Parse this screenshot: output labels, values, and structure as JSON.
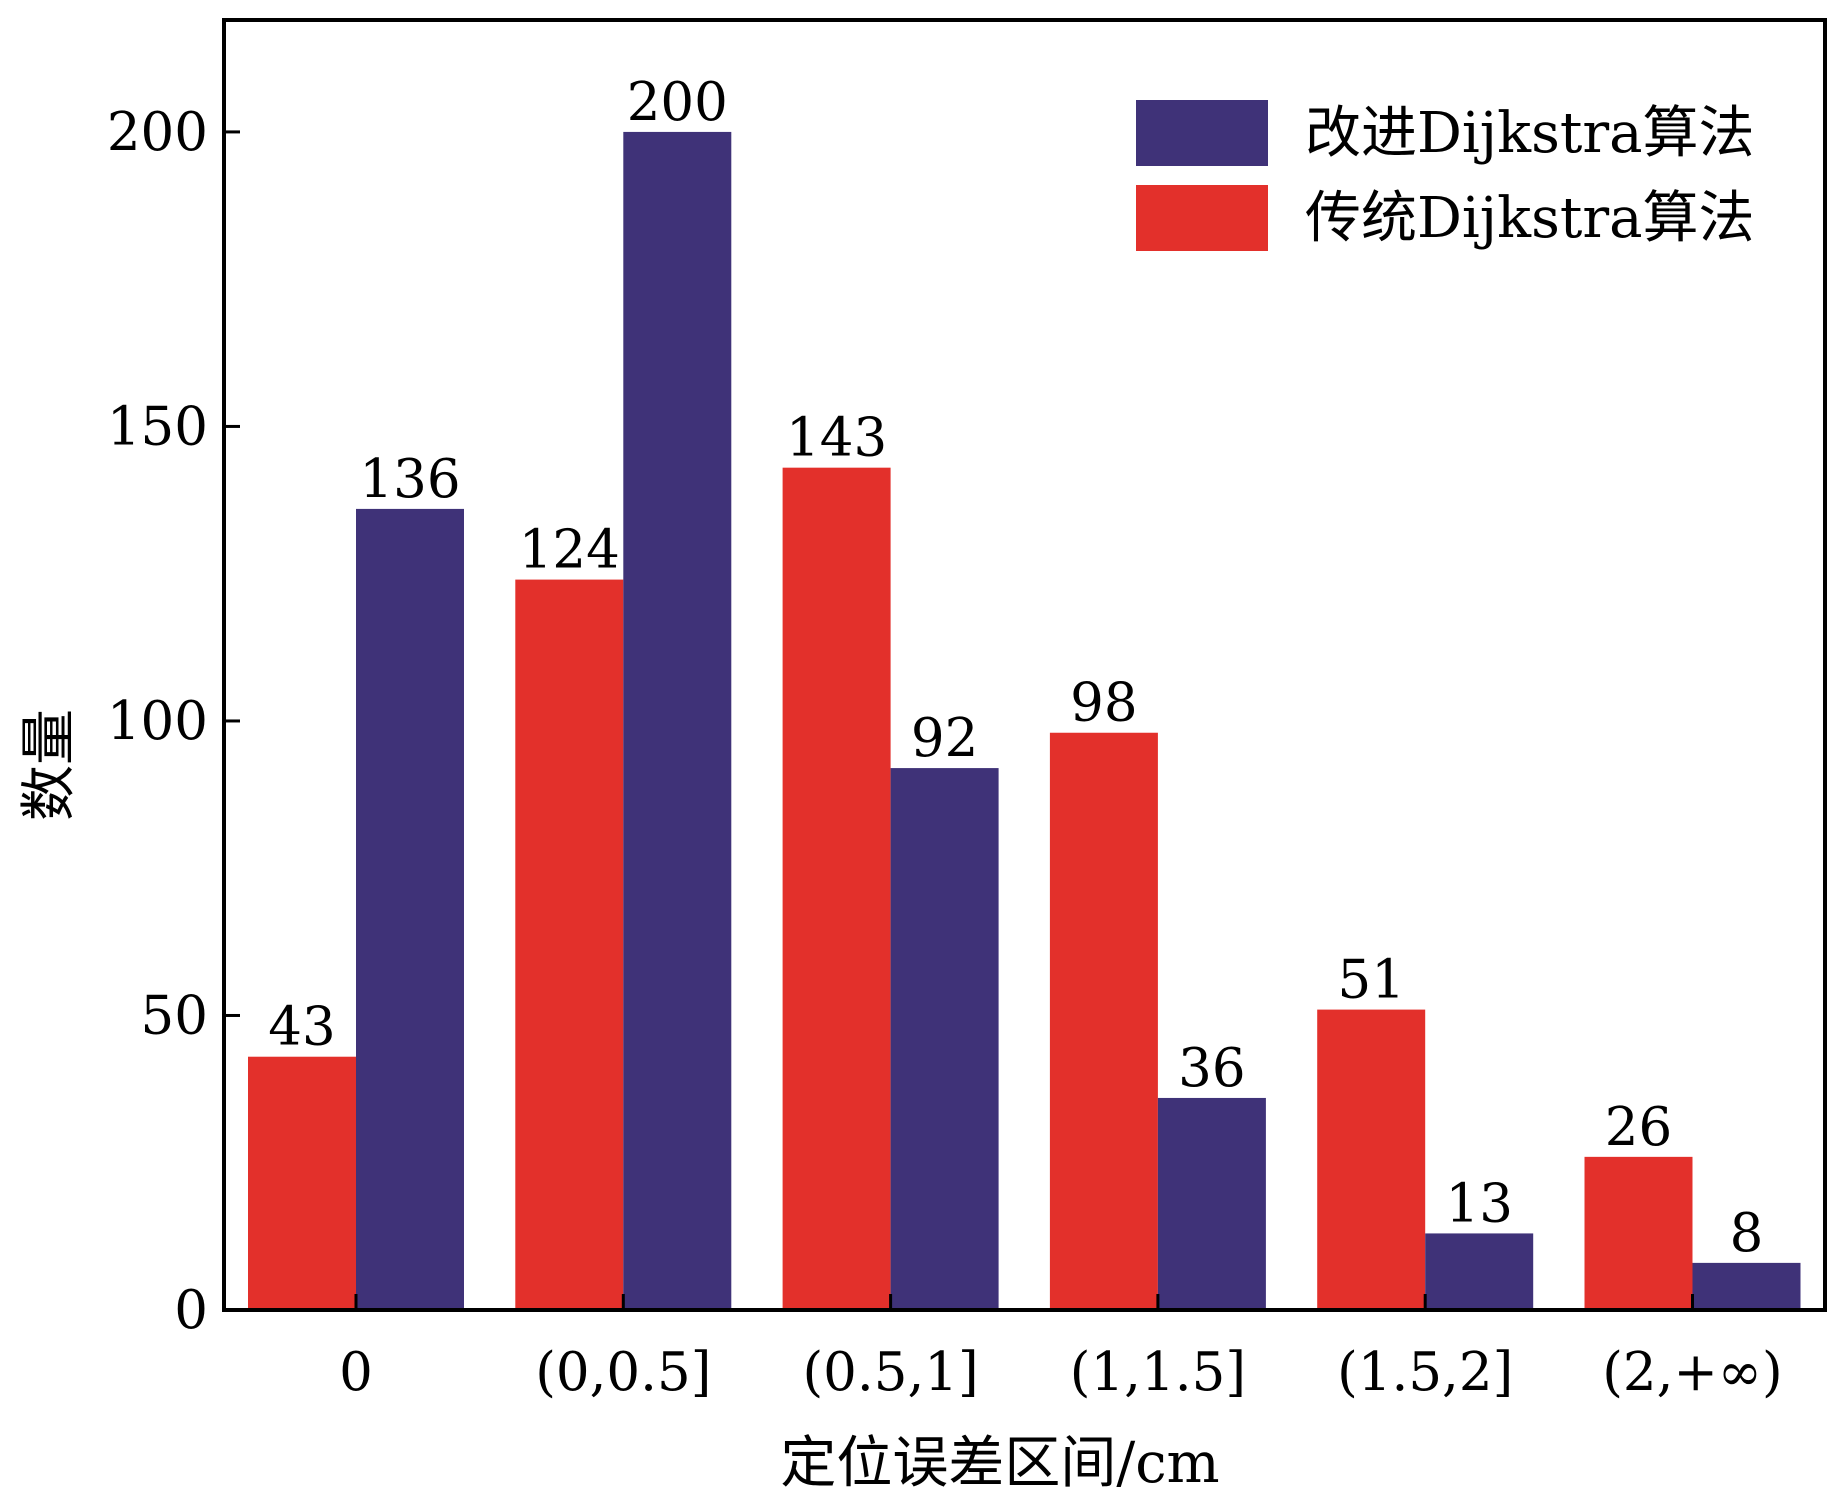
{
  "chart_data": {
    "type": "bar",
    "title": "",
    "xlabel": "定位误差区间/cm",
    "ylabel": "数量",
    "categories": [
      "0",
      "(0,0.5]",
      "(0.5,1]",
      "(1,1.5]",
      "(1.5,2]",
      "(2,+∞)"
    ],
    "series": [
      {
        "name": "传统Dijkstra算法",
        "color": "#E3302B",
        "values": [
          43,
          124,
          143,
          98,
          51,
          26
        ]
      },
      {
        "name": "改进Dijkstra算法",
        "color": "#3F3278",
        "values": [
          136,
          200,
          92,
          36,
          13,
          8
        ]
      }
    ],
    "ylim": [
      0,
      219
    ],
    "yticks": [
      0,
      50,
      100,
      150,
      200
    ],
    "grid": false,
    "legend_position": "top-right",
    "legend_order": [
      1,
      0
    ],
    "data_labels": true
  }
}
